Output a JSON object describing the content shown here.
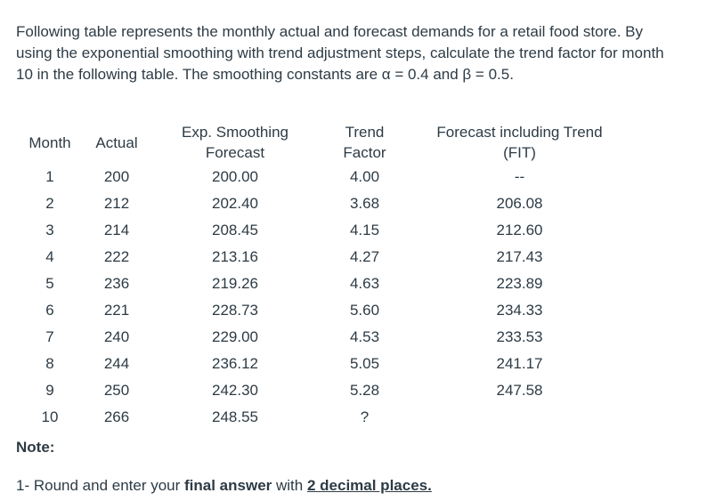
{
  "question": {
    "text": "Following table represents the monthly actual and forecast demands for a retail food store. By using the exponential smoothing with trend adjustment steps, calculate the trend factor for month 10 in the following table. The smoothing constants are α = 0.4 and β = 0.5."
  },
  "table": {
    "headers": {
      "month": "Month",
      "actual": "Actual",
      "exp_line1": "Exp. Smoothing",
      "exp_line2": "Forecast",
      "trend_line1": "Trend",
      "trend_line2": "Factor",
      "fit_line1": "Forecast including Trend",
      "fit_line2": "(FIT)"
    },
    "rows": [
      {
        "month": "1",
        "actual": "200",
        "exp": "200.00",
        "trend": "4.00",
        "fit": "--"
      },
      {
        "month": "2",
        "actual": "212",
        "exp": "202.40",
        "trend": "3.68",
        "fit": "206.08"
      },
      {
        "month": "3",
        "actual": "214",
        "exp": "208.45",
        "trend": "4.15",
        "fit": "212.60"
      },
      {
        "month": "4",
        "actual": "222",
        "exp": "213.16",
        "trend": "4.27",
        "fit": "217.43"
      },
      {
        "month": "5",
        "actual": "236",
        "exp": "219.26",
        "trend": "4.63",
        "fit": "223.89"
      },
      {
        "month": "6",
        "actual": "221",
        "exp": "228.73",
        "trend": "5.60",
        "fit": "234.33"
      },
      {
        "month": "7",
        "actual": "240",
        "exp": "229.00",
        "trend": "4.53",
        "fit": "233.53"
      },
      {
        "month": "8",
        "actual": "244",
        "exp": "236.12",
        "trend": "5.05",
        "fit": "241.17"
      },
      {
        "month": "9",
        "actual": "250",
        "exp": "242.30",
        "trend": "5.28",
        "fit": "247.58"
      },
      {
        "month": "10",
        "actual": "266",
        "exp": "248.55",
        "trend": "?",
        "fit": ""
      }
    ]
  },
  "note": {
    "label": "Note:",
    "prefix": "1- Round and enter your ",
    "bold": "final answer",
    "middle": " with ",
    "underlined": "2 decimal places."
  }
}
